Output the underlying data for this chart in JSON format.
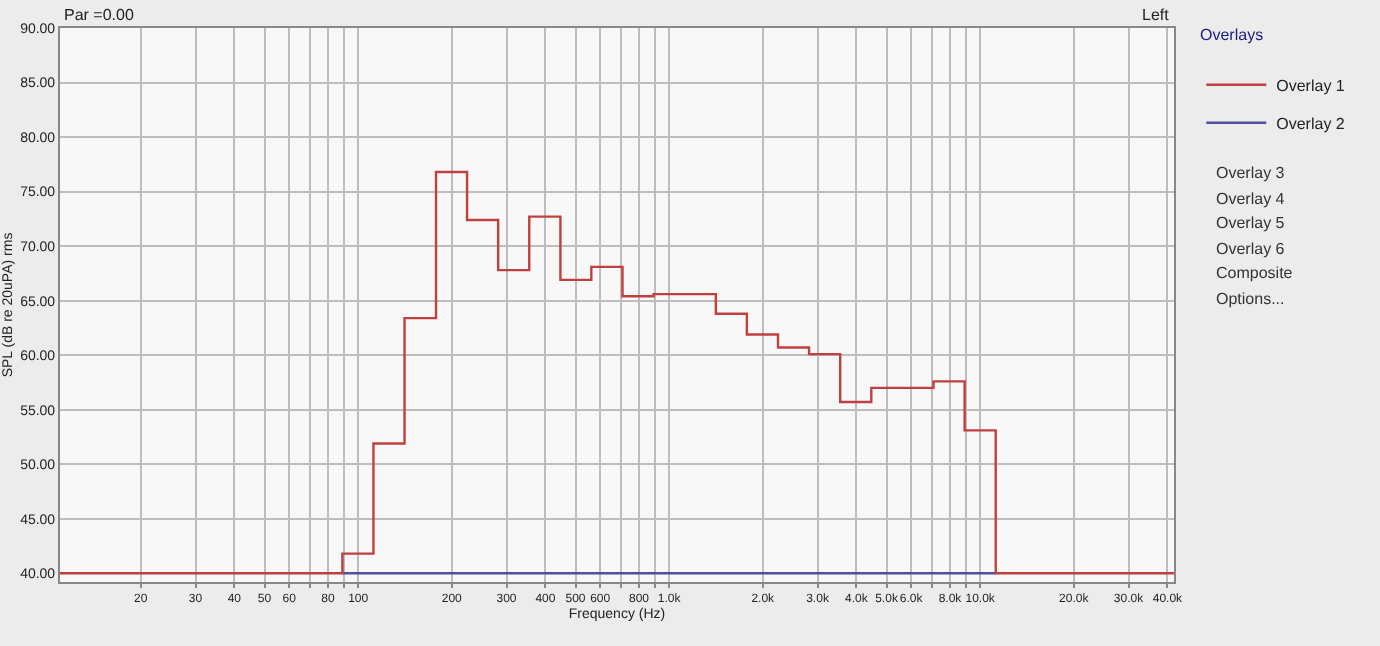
{
  "chart_data": {
    "type": "step",
    "xlabel": "Frequency (Hz)",
    "ylabel": "SPL (dB re 20uPA) rms",
    "log": "x",
    "grid": true,
    "legend": "right",
    "line_style": "solid",
    "marker": "none",
    "xlim": [
      11,
      42000
    ],
    "ylim": [
      39.2,
      90
    ],
    "xticks": [
      20,
      30,
      40,
      50,
      60,
      {
        "value": 70,
        "label": null
      },
      80,
      {
        "value": 90,
        "label": null
      },
      100,
      200,
      300,
      400,
      500,
      600,
      {
        "value": 700,
        "label": null
      },
      800,
      {
        "value": 900,
        "label": null
      },
      {
        "value": 1000,
        "label": "1.0k"
      },
      {
        "value": 2000,
        "label": "2.0k"
      },
      {
        "value": 3000,
        "label": "3.0k"
      },
      {
        "value": 4000,
        "label": "4.0k"
      },
      {
        "value": 5000,
        "label": "5.0k"
      },
      {
        "value": 6000,
        "label": "6.0k"
      },
      {
        "value": 7000,
        "label": null
      },
      {
        "value": 8000,
        "label": "8.0k"
      },
      {
        "value": 9000,
        "label": null
      },
      {
        "value": 10000,
        "label": "10.0k"
      },
      {
        "value": 20000,
        "label": "20.0k"
      },
      {
        "value": 30000,
        "label": "30.0k"
      },
      {
        "value": 40000,
        "label": "40.0k"
      }
    ],
    "yticks": [
      {
        "value": 40,
        "label": "40.00"
      },
      {
        "value": 45,
        "label": "45.00"
      },
      {
        "value": 50,
        "label": "50.00"
      },
      {
        "value": 55,
        "label": "55.00"
      },
      {
        "value": 60,
        "label": "60.00"
      },
      {
        "value": 65,
        "label": "65.00"
      },
      {
        "value": 70,
        "label": "70.00"
      },
      {
        "value": 75,
        "label": "75.00"
      },
      {
        "value": 80,
        "label": "80.00"
      },
      {
        "value": 85,
        "label": "85.00"
      },
      {
        "value": 90,
        "label": "90.00"
      }
    ],
    "series": [
      {
        "name": "Overlay 2",
        "color": "#5050a0",
        "x": [
          89,
          11220
        ],
        "values": [
          40,
          40
        ]
      },
      {
        "name": "Overlay 1",
        "color": "#c04040",
        "x": [
          11,
          89,
          112,
          141,
          178,
          224,
          282,
          355,
          447,
          562,
          708,
          891,
          1413,
          1778,
          2239,
          2818,
          3548,
          4467,
          7079,
          8913,
          11220,
          42000
        ],
        "values": [
          40,
          41.8,
          51.9,
          63.4,
          76.8,
          72.4,
          67.8,
          72.7,
          66.9,
          68.1,
          65.4,
          65.6,
          63.8,
          61.9,
          60.7,
          60.1,
          55.7,
          57.0,
          57.6,
          53.1,
          40,
          40
        ]
      }
    ],
    "annotations": [
      "Par =0.00",
      "Left",
      "Overlays",
      "Overlay 3",
      "Overlay 4",
      "Overlay 5",
      "Overlay 6",
      "Composite",
      "Options..."
    ]
  }
}
